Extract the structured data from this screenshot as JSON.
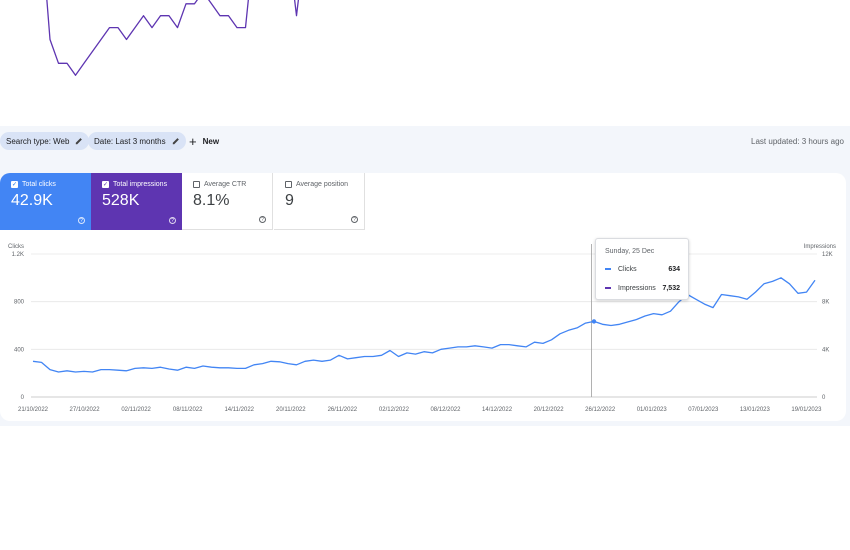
{
  "toolbar": {
    "search_type_chip": "Search type: Web",
    "date_chip": "Date: Last 3 months",
    "new_label": "New",
    "last_updated": "Last updated: 3 hours ago"
  },
  "metrics": {
    "clicks": {
      "label": "Total clicks",
      "value": "42.9K",
      "selected": true,
      "color": "#4285f4"
    },
    "impressions": {
      "label": "Total impressions",
      "value": "528K",
      "selected": true,
      "color": "#5e35b1"
    },
    "ctr": {
      "label": "Average CTR",
      "value": "8.1%",
      "selected": false
    },
    "position": {
      "label": "Average position",
      "value": "9",
      "selected": false
    }
  },
  "tooltip": {
    "title": "Sunday, 25 Dec",
    "clicks_label": "Clicks",
    "clicks_value": "634",
    "impressions_label": "Impressions",
    "impressions_value": "7,532"
  },
  "chart_data": {
    "type": "line",
    "left_axis_label": "Clicks",
    "right_axis_label": "Impressions",
    "left_ticks": [
      "1.2K",
      "800",
      "400",
      "0"
    ],
    "left_tick_values": [
      1200,
      800,
      400,
      0
    ],
    "right_ticks": [
      "12K",
      "8K",
      "4K",
      "0"
    ],
    "right_tick_values": [
      12000,
      8000,
      4000,
      0
    ],
    "ylim_left": [
      0,
      1200
    ],
    "ylim_right": [
      0,
      12000
    ],
    "x_tick_labels": [
      "21/10/2022",
      "27/10/2022",
      "02/11/2022",
      "08/11/2022",
      "14/11/2022",
      "20/11/2022",
      "26/11/2022",
      "02/12/2022",
      "08/12/2022",
      "14/12/2022",
      "20/12/2022",
      "26/12/2022",
      "01/01/2023",
      "07/01/2023",
      "13/01/2023",
      "19/01/2023"
    ],
    "start_date": "21/10/2022",
    "end_date": "20/01/2023",
    "highlight_date": "25/12/2022",
    "series": [
      {
        "name": "Clicks",
        "axis": "left",
        "color": "#4285f4",
        "values": [
          300,
          290,
          230,
          210,
          220,
          210,
          215,
          210,
          230,
          230,
          225,
          220,
          240,
          245,
          240,
          250,
          235,
          225,
          250,
          240,
          260,
          250,
          245,
          245,
          240,
          240,
          270,
          280,
          300,
          295,
          280,
          270,
          300,
          310,
          300,
          310,
          350,
          320,
          330,
          340,
          340,
          350,
          390,
          340,
          370,
          360,
          380,
          370,
          400,
          410,
          420,
          420,
          430,
          420,
          410,
          440,
          440,
          430,
          420,
          460,
          450,
          480,
          530,
          560,
          580,
          620,
          634,
          610,
          600,
          610,
          630,
          650,
          680,
          700,
          690,
          720,
          800,
          860,
          820,
          780,
          750,
          860,
          850,
          840,
          820,
          880,
          950,
          970,
          1000,
          950,
          870,
          880,
          980
        ]
      },
      {
        "name": "Impressions",
        "axis": "left",
        "color": "#5e35b1",
        "values": [
          4100,
          3900,
          3000,
          2800,
          2800,
          2700,
          2800,
          2900,
          3000,
          3100,
          3100,
          3000,
          3100,
          3200,
          3100,
          3200,
          3200,
          3100,
          3300,
          3300,
          3400,
          3300,
          3200,
          3200,
          3100,
          3100,
          3800,
          3900,
          4000,
          3900,
          3800,
          3200,
          3800,
          3900,
          3800,
          4000,
          4100,
          4000,
          4100,
          4000,
          4000,
          3900,
          4600,
          4700,
          4800,
          4500,
          4600,
          4500,
          5200,
          5300,
          5300,
          5200,
          5100,
          5200,
          5400,
          5500,
          5500,
          5700,
          5800,
          6300,
          6400,
          6800,
          6000,
          7100,
          7300,
          7000,
          7532,
          7400,
          7300,
          7500,
          7700,
          8500,
          9000,
          9300,
          8800,
          9400,
          9700,
          9900,
          9600,
          9300,
          9200,
          10000,
          10200,
          10000,
          9500,
          10300,
          10700,
          10900,
          11200,
          10900,
          9800,
          9600,
          11000
        ]
      }
    ]
  }
}
